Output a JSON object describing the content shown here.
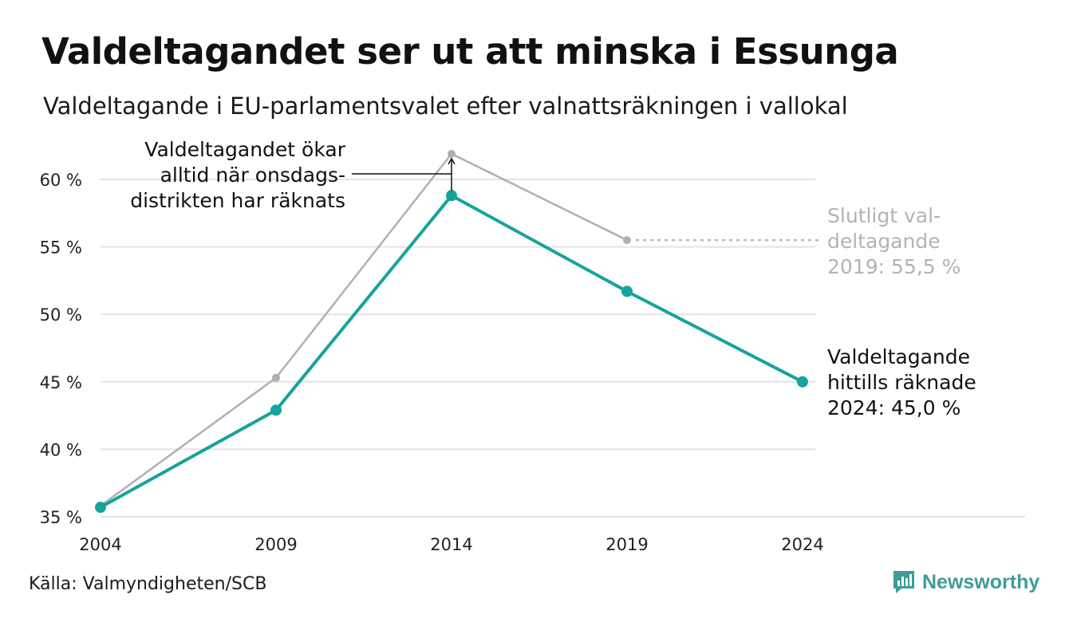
{
  "title": "Valdeltagandet ser ut att minska i Essunga",
  "subtitle": "Valdeltagande i EU-parlamentsvalet efter valnattsräkningen i vallokal",
  "source": "Källa: Valmyndigheten/SCB",
  "brand": "Newsworthy",
  "chart_data": {
    "type": "line",
    "x": [
      "2004",
      "2009",
      "2014",
      "2019",
      "2024"
    ],
    "ylim": [
      35,
      62
    ],
    "yticks": [
      35,
      40,
      45,
      50,
      55,
      60
    ],
    "ytick_labels": [
      "35 %",
      "40 %",
      "45 %",
      "50 %",
      "55 %",
      "60 %"
    ],
    "grid": true,
    "series": [
      {
        "color": "#b0b0b0",
        "values": [
          35.8,
          45.3,
          61.9,
          55.5,
          null
        ]
      },
      {
        "color": "#16a39b",
        "values": [
          35.7,
          42.9,
          58.8,
          51.7,
          45.0
        ]
      }
    ],
    "annotations": [
      {
        "lines": [
          "Valdeltagandet ökar",
          "alltid när onsdags-",
          "distrikten har räknats"
        ],
        "color": "#111111"
      },
      {
        "lines": [
          "Slutligt val-",
          "deltagande",
          "2019: 55,5 %"
        ],
        "color": "#b3b3b3"
      },
      {
        "lines": [
          "Valdeltagande",
          "hittills räknade",
          "2024: 45,0 %"
        ],
        "color": "#111111"
      }
    ]
  }
}
